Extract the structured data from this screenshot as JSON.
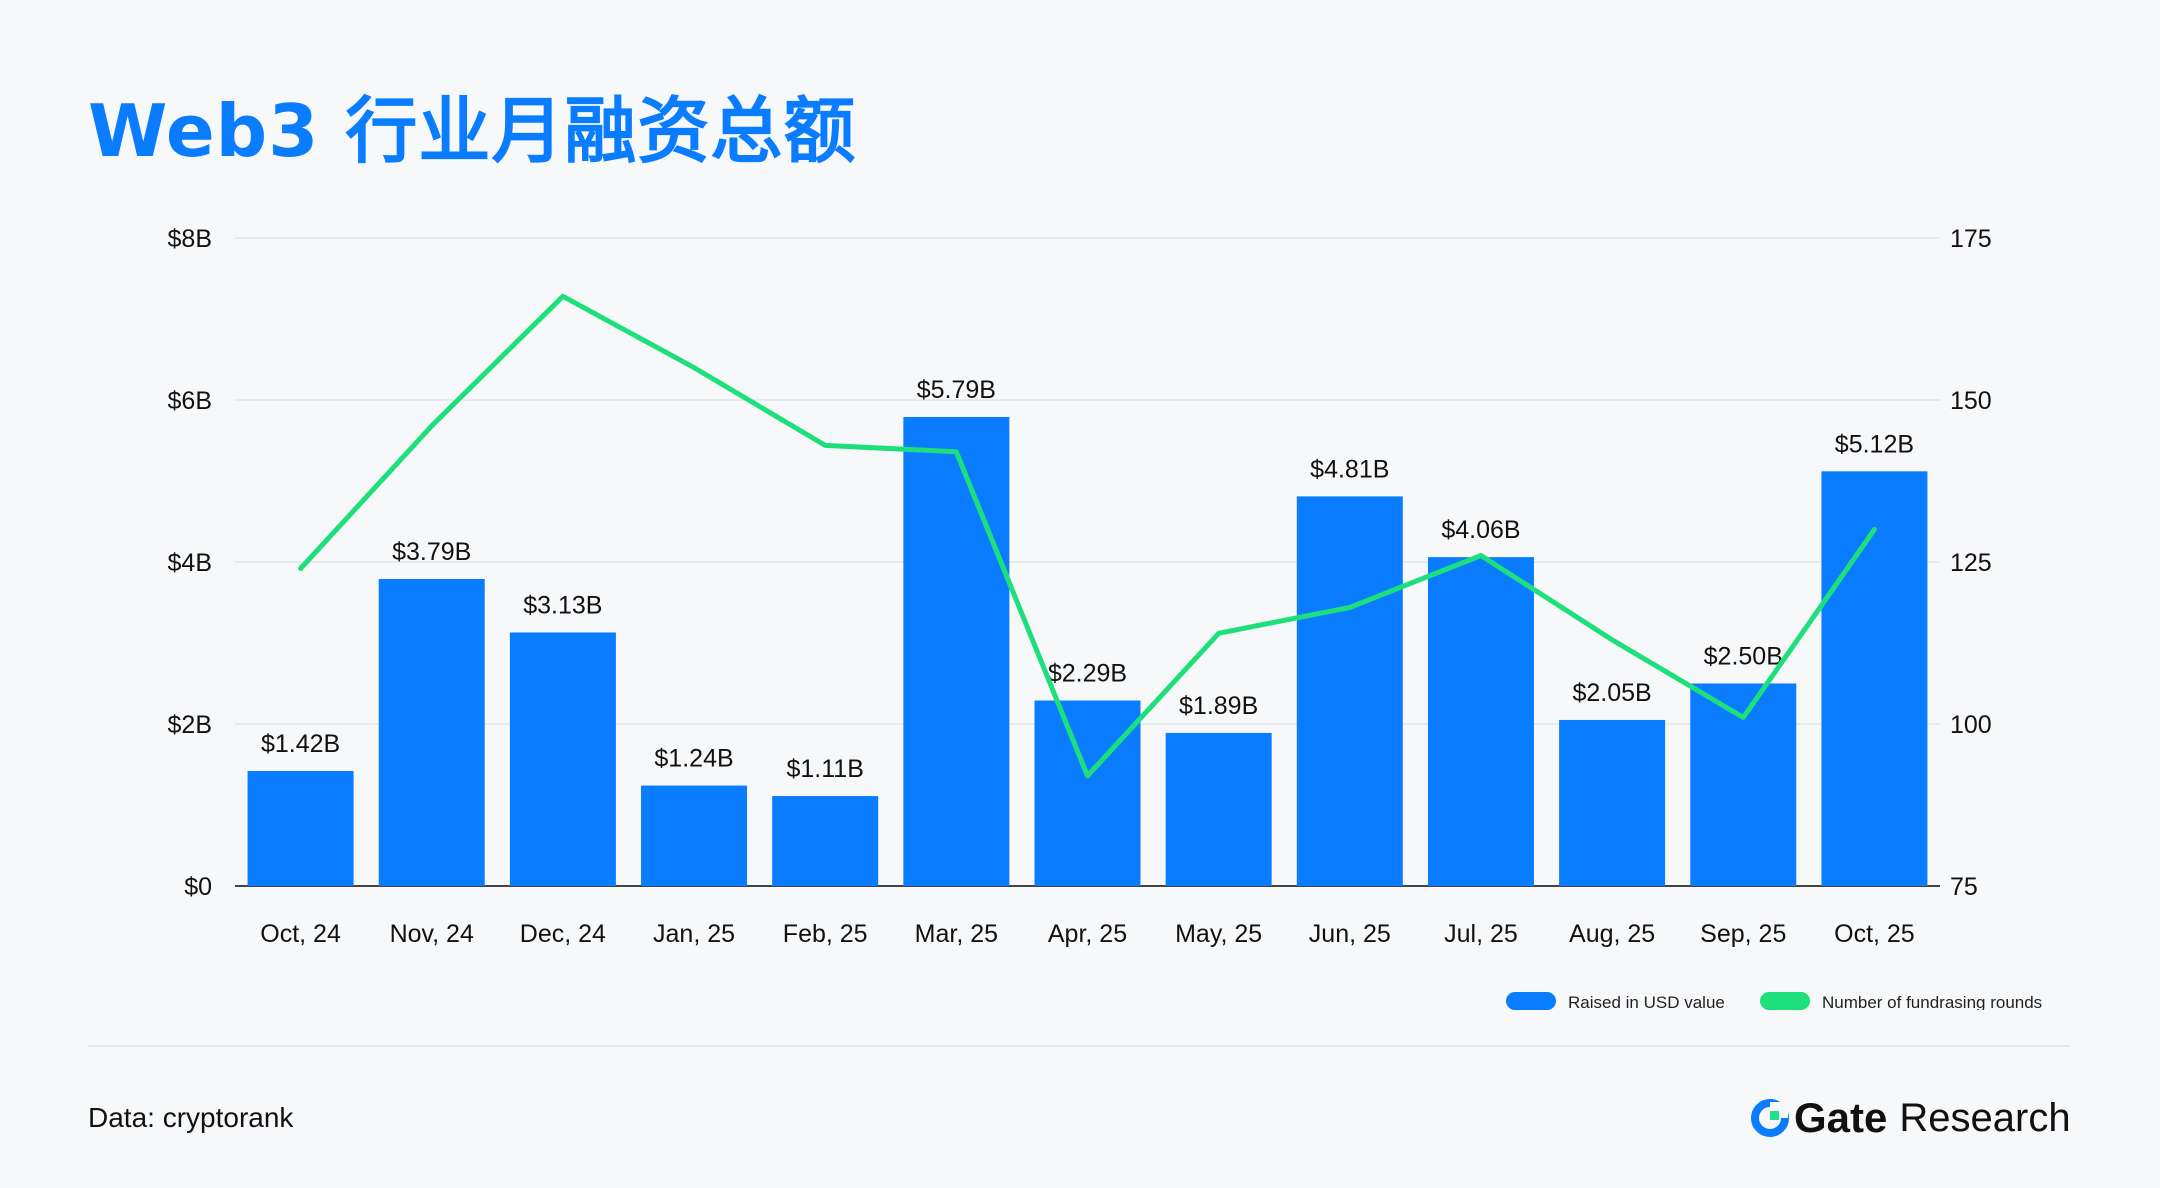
{
  "title": "Web3 行业月融资总额",
  "footer": {
    "source": "Data: cryptorank",
    "brand_main": "Gate",
    "brand_sub": "Research"
  },
  "colors": {
    "bar": "#0a7cff",
    "line": "#1ee07a",
    "title": "#0a7cff"
  },
  "chart_data": {
    "type": "bar",
    "categories": [
      "Oct, 24",
      "Nov, 24",
      "Dec, 24",
      "Jan, 25",
      "Feb, 25",
      "Mar, 25",
      "Apr, 25",
      "May, 25",
      "Jun, 25",
      "Jul, 25",
      "Aug, 25",
      "Sep, 25",
      "Oct, 25"
    ],
    "series": [
      {
        "name": "Raised in USD value",
        "type": "bar",
        "axis": "left",
        "values": [
          1.42,
          3.79,
          3.13,
          1.24,
          1.11,
          5.79,
          2.29,
          1.89,
          4.81,
          4.06,
          2.05,
          2.5,
          5.12
        ],
        "labels": [
          "$1.42B",
          "$3.79B",
          "$3.13B",
          "$1.24B",
          "$1.11B",
          "$5.79B",
          "$2.29B",
          "$1.89B",
          "$4.81B",
          "$4.06B",
          "$2.05B",
          "$2.50B",
          "$5.12B"
        ]
      },
      {
        "name": "Number of fundrasing rounds",
        "type": "line",
        "axis": "right",
        "values": [
          124,
          146,
          166,
          155,
          143,
          142,
          92,
          114,
          118,
          126,
          113,
          101,
          130
        ]
      }
    ],
    "y_left": {
      "ticks": [
        "$0",
        "$2B",
        "$4B",
        "$6B",
        "$8B"
      ],
      "min": 0,
      "max": 8
    },
    "y_right": {
      "ticks": [
        "75",
        "100",
        "125",
        "150",
        "175"
      ],
      "min": 75,
      "max": 175
    },
    "grid": true,
    "legend_position": "bottom-right"
  }
}
